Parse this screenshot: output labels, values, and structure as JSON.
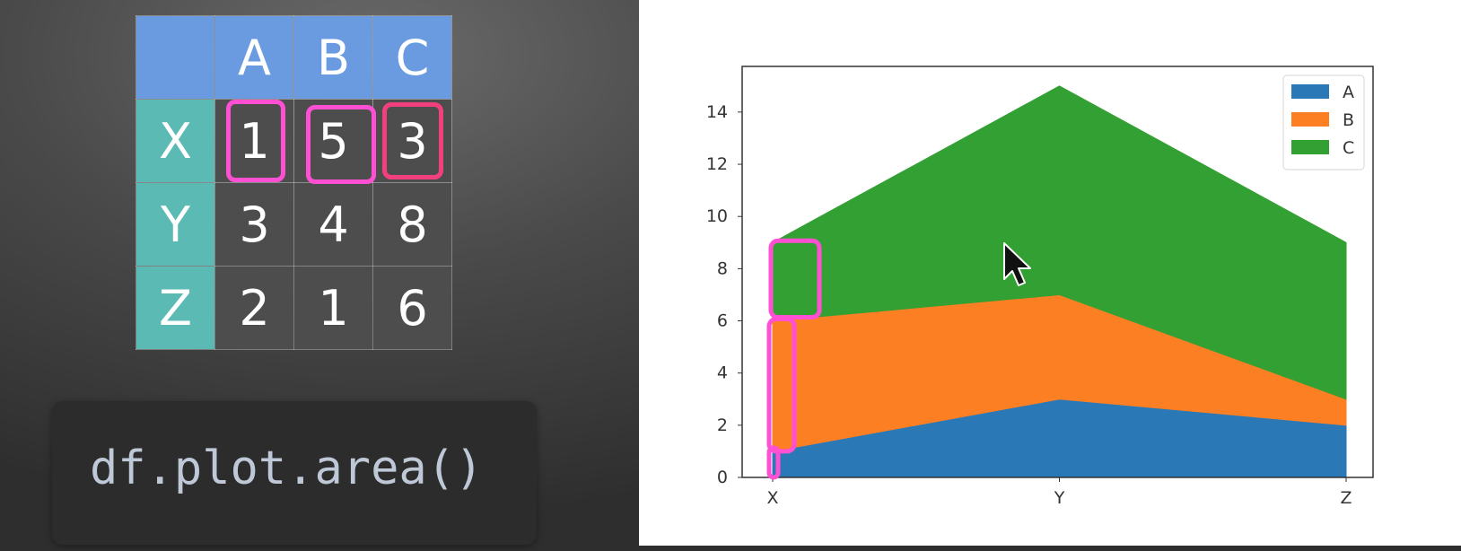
{
  "table": {
    "columns": [
      "A",
      "B",
      "C"
    ],
    "rows": [
      {
        "label": "X",
        "values": [
          "1",
          "5",
          "3"
        ]
      },
      {
        "label": "Y",
        "values": [
          "3",
          "4",
          "8"
        ]
      },
      {
        "label": "Z",
        "values": [
          "2",
          "1",
          "6"
        ]
      }
    ],
    "header_color": "#6a9be0",
    "index_color": "#5cbab5",
    "highlighted_cells": [
      "X.A",
      "X.B",
      "X.C"
    ]
  },
  "code": {
    "text": "df.plot.area()"
  },
  "chart_data": {
    "type": "area",
    "stacked": true,
    "categories": [
      "X",
      "Y",
      "Z"
    ],
    "series": [
      {
        "name": "A",
        "values": [
          1,
          3,
          2
        ],
        "color": "#2a78b5"
      },
      {
        "name": "B",
        "values": [
          5,
          4,
          1
        ],
        "color": "#fd7f24"
      },
      {
        "name": "C",
        "values": [
          3,
          8,
          6
        ],
        "color": "#33a033"
      }
    ],
    "ylim": [
      0,
      15.75
    ],
    "yticks": [
      0,
      2,
      4,
      6,
      8,
      10,
      12,
      14
    ],
    "grid": false,
    "legend_position": "top-right",
    "highlight_color": "#ff4fd3"
  }
}
